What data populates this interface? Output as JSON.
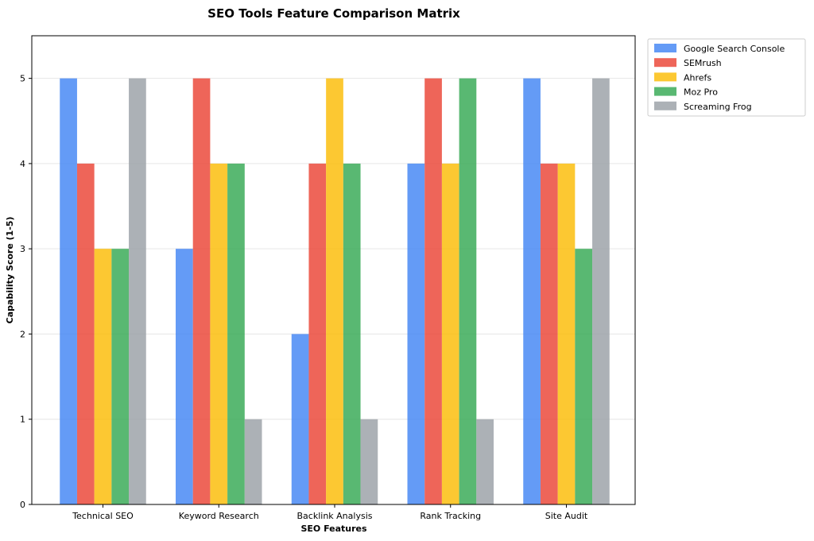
{
  "chart_data": {
    "type": "bar",
    "title": "SEO Tools Feature Comparison Matrix",
    "xlabel": "SEO Features",
    "ylabel": "Capability Score (1-5)",
    "categories": [
      "Technical SEO",
      "Keyword Research",
      "Backlink Analysis",
      "Rank Tracking",
      "Site Audit"
    ],
    "ylim": [
      0,
      5.5
    ],
    "yticks": [
      0,
      1,
      2,
      3,
      4,
      5
    ],
    "grid": "y",
    "legend_position": "outside top-right",
    "series": [
      {
        "name": "Google Search Console",
        "color": "#4285f4",
        "values": [
          5,
          3,
          2,
          4,
          5
        ]
      },
      {
        "name": "SEMrush",
        "color": "#ea4335",
        "values": [
          4,
          5,
          4,
          5,
          4
        ]
      },
      {
        "name": "Ahrefs",
        "color": "#fbbc05",
        "values": [
          3,
          4,
          5,
          4,
          4
        ]
      },
      {
        "name": "Moz Pro",
        "color": "#34a853",
        "values": [
          3,
          4,
          4,
          5,
          3
        ]
      },
      {
        "name": "Screaming Frog",
        "color": "#9aa0a6",
        "values": [
          5,
          1,
          1,
          1,
          5
        ]
      }
    ]
  }
}
